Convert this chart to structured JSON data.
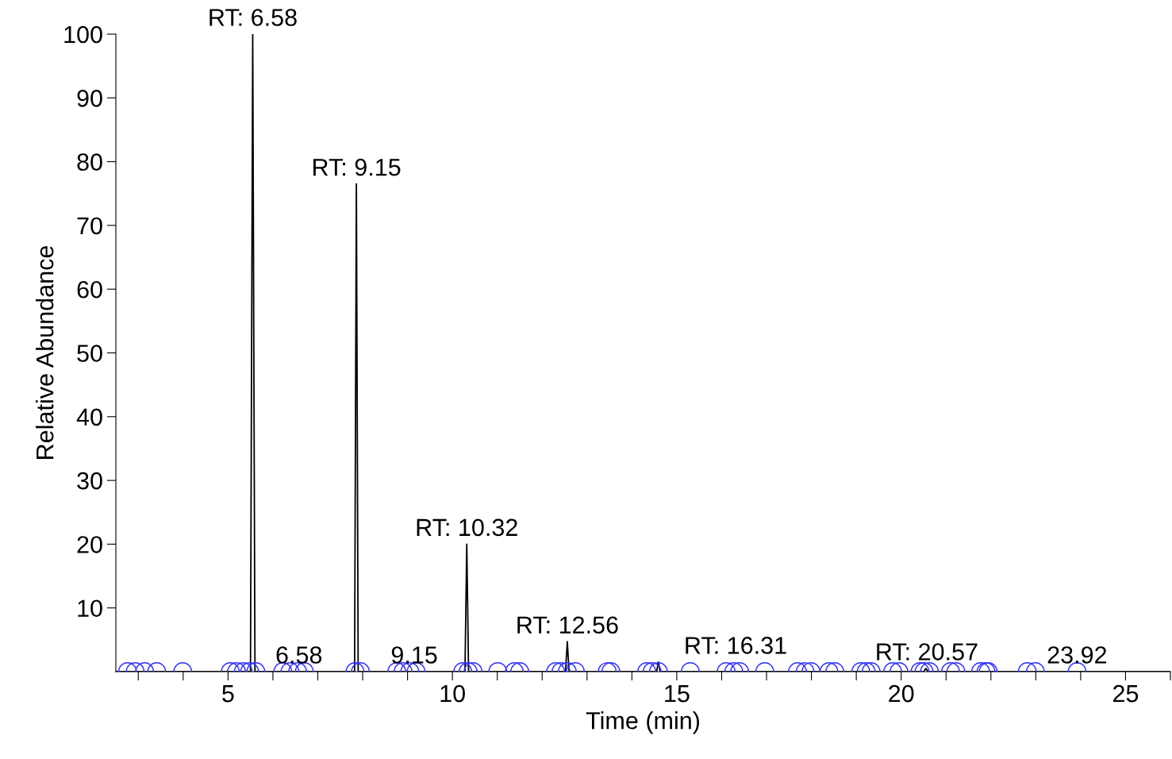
{
  "chart_data": {
    "type": "line",
    "xlabel": "Time (min)",
    "ylabel": "Relative Abundance",
    "xlim": [
      2.5,
      26
    ],
    "ylim": [
      0,
      100
    ],
    "xticks": [
      {
        "value": 3,
        "label": null
      },
      {
        "value": 4,
        "label": null
      },
      5,
      {
        "value": 6,
        "label": null
      },
      {
        "value": 7,
        "label": null
      },
      {
        "value": 8,
        "label": null
      },
      {
        "value": 9,
        "label": null
      },
      10,
      {
        "value": 11,
        "label": null
      },
      {
        "value": 12,
        "label": null
      },
      {
        "value": 13,
        "label": null
      },
      {
        "value": 14,
        "label": null
      },
      15,
      {
        "value": 16,
        "label": null
      },
      {
        "value": 17,
        "label": null
      },
      {
        "value": 18,
        "label": null
      },
      {
        "value": 19,
        "label": null
      },
      20,
      {
        "value": 21,
        "label": null
      },
      {
        "value": 22,
        "label": null
      },
      {
        "value": 23,
        "label": null
      },
      {
        "value": 24,
        "label": null
      },
      25,
      {
        "value": 26,
        "label": null
      }
    ],
    "yticks": [
      10,
      20,
      30,
      40,
      50,
      60,
      70,
      80,
      90,
      100
    ],
    "grid": false,
    "legend": false,
    "series": [
      {
        "color": "#000000",
        "marker": "none",
        "x": [
          2.5,
          5.5,
          5.55,
          5.6,
          7.82,
          7.86,
          7.9,
          10.28,
          10.32,
          10.36,
          12.52,
          12.56,
          12.6,
          14.55,
          14.59,
          14.63,
          20.5,
          20.55,
          20.6,
          26
        ],
        "values": [
          0,
          0,
          100,
          0,
          0,
          76.5,
          0,
          0,
          20,
          0,
          0,
          4.7,
          0,
          0,
          1.5,
          0,
          0,
          0.5,
          0,
          0
        ]
      },
      {
        "type": "scatter",
        "color": "#3333ff",
        "marker": "circle",
        "x": [
          2.76,
          2.93,
          3.14,
          3.41,
          3.99,
          5.05,
          5.19,
          5.34,
          5.48,
          5.62,
          6.22,
          6.38,
          6.55,
          6.7,
          7.83,
          7.95,
          8.76,
          8.9,
          9.05,
          9.19,
          10.23,
          10.35,
          10.46,
          11.01,
          11.38,
          11.5,
          12.3,
          12.42,
          12.56,
          12.74,
          13.45,
          13.53,
          14.33,
          14.45,
          14.59,
          15.3,
          16.1,
          16.27,
          16.4,
          16.96,
          17.69,
          17.86,
          17.99,
          18.39,
          18.52,
          19.1,
          19.22,
          19.33,
          19.81,
          19.95,
          20.42,
          20.51,
          20.63,
          21.1,
          21.22,
          21.77,
          21.89,
          21.94,
          22.81,
          22.99,
          23.92
        ],
        "values": [
          0,
          0,
          0,
          0,
          0,
          0,
          0,
          0,
          0,
          0,
          0,
          0,
          0,
          0,
          0,
          0,
          0,
          0,
          0,
          0,
          0,
          0,
          0,
          0,
          0,
          0,
          0,
          0,
          0,
          0,
          0,
          0,
          0,
          0,
          0,
          0,
          0,
          0,
          0,
          0,
          0,
          0,
          0,
          0,
          0,
          0,
          0,
          0,
          0,
          0,
          0,
          0,
          0,
          0,
          0,
          0,
          0,
          0,
          0,
          0,
          0
        ]
      }
    ],
    "annotations": [
      {
        "text": "RT: 6.58",
        "x": 5.55,
        "y": 100
      },
      {
        "text": "RT: 9.15",
        "x": 7.86,
        "y": 76.5
      },
      {
        "text": "RT: 10.32",
        "x": 10.32,
        "y": 20
      },
      {
        "text": "RT: 12.56",
        "x": 12.56,
        "y": 4.7
      },
      {
        "text": "RT: 16.31",
        "x": 16.31,
        "y": 1.5
      },
      {
        "text": "RT: 20.57",
        "x": 20.57,
        "y": 0.5
      },
      {
        "text": "6.58",
        "x": 6.58,
        "y": 0
      },
      {
        "text": "9.15",
        "x": 9.15,
        "y": 0
      },
      {
        "text": "23.92",
        "x": 23.92,
        "y": 0
      }
    ]
  }
}
